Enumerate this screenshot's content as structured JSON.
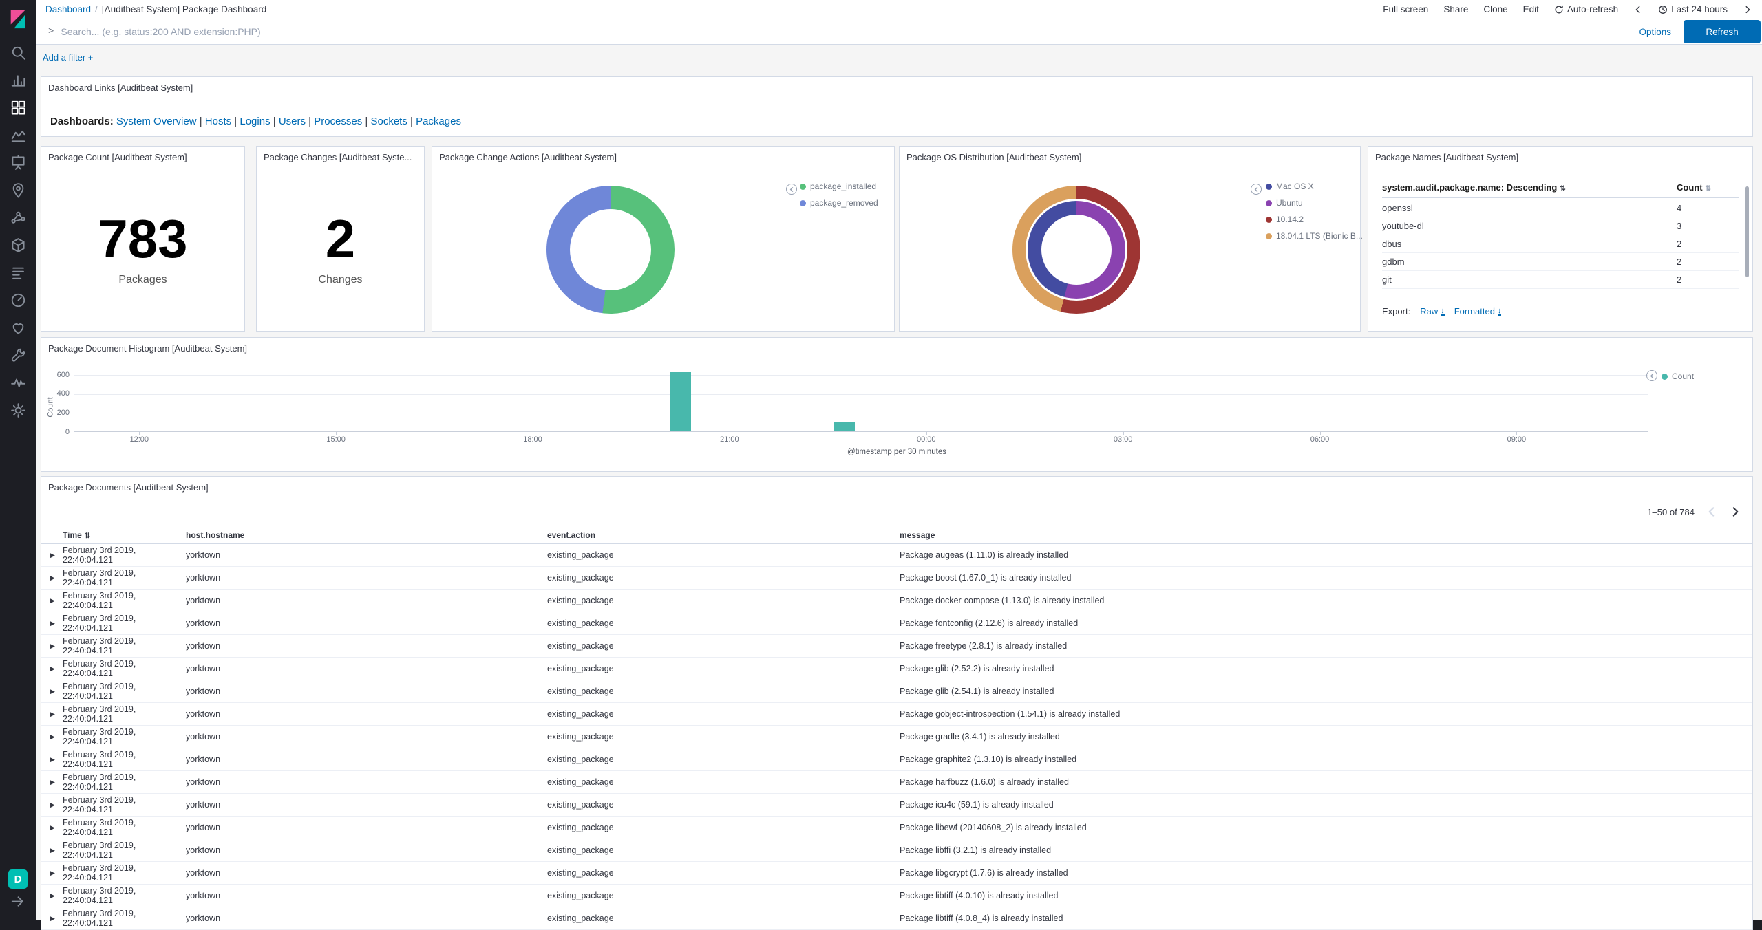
{
  "colors": {
    "accent_blue": "#006BB4",
    "sidebar_bg": "#1D1E24",
    "panel_border": "#D3DAE6",
    "teal_badge": "#00BFB3"
  },
  "sidebar": {
    "items": [
      "Discover",
      "Visualize",
      "Dashboard",
      "Timelion",
      "Canvas",
      "Maps",
      "Machine Learning",
      "Infrastructure",
      "Logs",
      "APM",
      "Uptime",
      "Dev Tools",
      "Monitoring",
      "Management"
    ],
    "active_item": "Dashboard",
    "space_badge": "D"
  },
  "header": {
    "breadcrumb": {
      "root": "Dashboard",
      "separator": "/",
      "current": "[Auditbeat System] Package Dashboard"
    },
    "actions": [
      "Full screen",
      "Share",
      "Clone",
      "Edit"
    ],
    "auto_refresh": "Auto-refresh",
    "time_range": "Last 24 hours"
  },
  "search": {
    "placeholder": "Search... (e.g. status:200 AND extension:PHP)",
    "value": "",
    "options": "Options",
    "refresh": "Refresh"
  },
  "filter_bar": {
    "add_filter": "Add a filter +"
  },
  "links_panel": {
    "title": "Dashboard Links [Auditbeat System]",
    "label": "Dashboards:",
    "separator": "|",
    "links": [
      "System Overview",
      "Hosts",
      "Logins",
      "Users",
      "Processes",
      "Sockets",
      "Packages"
    ]
  },
  "metrics": [
    {
      "title": "Package Count [Auditbeat System]",
      "value": "783",
      "label": "Packages"
    },
    {
      "title": "Package Changes [Auditbeat Syste...",
      "value": "2",
      "label": "Changes"
    }
  ],
  "package_names": {
    "title": "Package Names [Auditbeat System]",
    "sort_column": "system.audit.package.name: Descending",
    "count_column": "Count",
    "rows": [
      {
        "name": "openssl",
        "count": "4"
      },
      {
        "name": "youtube-dl",
        "count": "3"
      },
      {
        "name": "dbus",
        "count": "2"
      },
      {
        "name": "gdbm",
        "count": "2"
      },
      {
        "name": "git",
        "count": "2"
      }
    ],
    "export_label": "Export:",
    "export_raw": "Raw",
    "export_formatted": "Formatted"
  },
  "chart_data": [
    {
      "id": "change_actions",
      "type": "pie",
      "title": "Package Change Actions [Auditbeat System]",
      "legend_position": "right",
      "slices": [
        {
          "label": "package_installed",
          "pct": 52,
          "color": "#57C17B"
        },
        {
          "label": "package_removed",
          "pct": 48,
          "color": "#6F87D8"
        }
      ]
    },
    {
      "id": "os_distribution",
      "type": "pie",
      "title": "Package OS Distribution [Auditbeat System]",
      "legend_position": "right",
      "rings": [
        {
          "name": "inner",
          "slices": [
            {
              "label": "Ubuntu",
              "pct": 54,
              "color": "#8A42B0"
            },
            {
              "label": "Mac OS X",
              "pct": 46,
              "color": "#434CA1"
            }
          ]
        },
        {
          "name": "outer",
          "slices": [
            {
              "label": "10.14.2",
              "pct": 54,
              "color": "#9E3533"
            },
            {
              "label": "18.04.1 LTS (Bionic B...",
              "pct": 46,
              "color": "#DAA05D"
            }
          ]
        }
      ],
      "legend": [
        {
          "label": "Mac OS X",
          "color": "#434CA1"
        },
        {
          "label": "Ubuntu",
          "color": "#8A42B0"
        },
        {
          "label": "10.14.2",
          "color": "#9E3533"
        },
        {
          "label": "18.04.1 LTS (Bionic B...",
          "color": "#DAA05D"
        }
      ]
    },
    {
      "id": "doc_histogram",
      "type": "bar",
      "title": "Package Document Histogram [Auditbeat System]",
      "xlabel": "@timestamp per 30 minutes",
      "ylabel": "Count",
      "x_start": "11:00",
      "x_span_minutes": 1440,
      "bucket_minutes": 30,
      "x_ticks": [
        "12:00",
        "15:00",
        "18:00",
        "21:00",
        "00:00",
        "03:00",
        "06:00",
        "09:00"
      ],
      "y_ticks": [
        0,
        200,
        400,
        600
      ],
      "ylim": [
        0,
        650
      ],
      "grid": true,
      "legend": [
        {
          "label": "Count",
          "color": "#48B8AC"
        }
      ],
      "bars": [
        {
          "time": "20:00",
          "count": 620
        },
        {
          "time": "22:30",
          "count": 95
        }
      ]
    }
  ],
  "documents": {
    "title": "Package Documents [Auditbeat System]",
    "pagination": "1–50 of 784",
    "columns": [
      "Time",
      "host.hostname",
      "event.action",
      "message"
    ],
    "rows": [
      {
        "time": "February 3rd 2019, 22:40:04.121",
        "host": "yorktown",
        "action": "existing_package",
        "message": "Package augeas (1.11.0) is already installed"
      },
      {
        "time": "February 3rd 2019, 22:40:04.121",
        "host": "yorktown",
        "action": "existing_package",
        "message": "Package boost (1.67.0_1) is already installed"
      },
      {
        "time": "February 3rd 2019, 22:40:04.121",
        "host": "yorktown",
        "action": "existing_package",
        "message": "Package docker-compose (1.13.0) is already installed"
      },
      {
        "time": "February 3rd 2019, 22:40:04.121",
        "host": "yorktown",
        "action": "existing_package",
        "message": "Package fontconfig (2.12.6) is already installed"
      },
      {
        "time": "February 3rd 2019, 22:40:04.121",
        "host": "yorktown",
        "action": "existing_package",
        "message": "Package freetype (2.8.1) is already installed"
      },
      {
        "time": "February 3rd 2019, 22:40:04.121",
        "host": "yorktown",
        "action": "existing_package",
        "message": "Package glib (2.52.2) is already installed"
      },
      {
        "time": "February 3rd 2019, 22:40:04.121",
        "host": "yorktown",
        "action": "existing_package",
        "message": "Package glib (2.54.1) is already installed"
      },
      {
        "time": "February 3rd 2019, 22:40:04.121",
        "host": "yorktown",
        "action": "existing_package",
        "message": "Package gobject-introspection (1.54.1) is already installed"
      },
      {
        "time": "February 3rd 2019, 22:40:04.121",
        "host": "yorktown",
        "action": "existing_package",
        "message": "Package gradle (3.4.1) is already installed"
      },
      {
        "time": "February 3rd 2019, 22:40:04.121",
        "host": "yorktown",
        "action": "existing_package",
        "message": "Package graphite2 (1.3.10) is already installed"
      },
      {
        "time": "February 3rd 2019, 22:40:04.121",
        "host": "yorktown",
        "action": "existing_package",
        "message": "Package harfbuzz (1.6.0) is already installed"
      },
      {
        "time": "February 3rd 2019, 22:40:04.121",
        "host": "yorktown",
        "action": "existing_package",
        "message": "Package icu4c (59.1) is already installed"
      },
      {
        "time": "February 3rd 2019, 22:40:04.121",
        "host": "yorktown",
        "action": "existing_package",
        "message": "Package libewf (20140608_2) is already installed"
      },
      {
        "time": "February 3rd 2019, 22:40:04.121",
        "host": "yorktown",
        "action": "existing_package",
        "message": "Package libffi (3.2.1) is already installed"
      },
      {
        "time": "February 3rd 2019, 22:40:04.121",
        "host": "yorktown",
        "action": "existing_package",
        "message": "Package libgcrypt (1.7.6) is already installed"
      },
      {
        "time": "February 3rd 2019, 22:40:04.121",
        "host": "yorktown",
        "action": "existing_package",
        "message": "Package libtiff (4.0.10) is already installed"
      },
      {
        "time": "February 3rd 2019, 22:40:04.121",
        "host": "yorktown",
        "action": "existing_package",
        "message": "Package libtiff (4.0.8_4) is already installed"
      }
    ]
  }
}
